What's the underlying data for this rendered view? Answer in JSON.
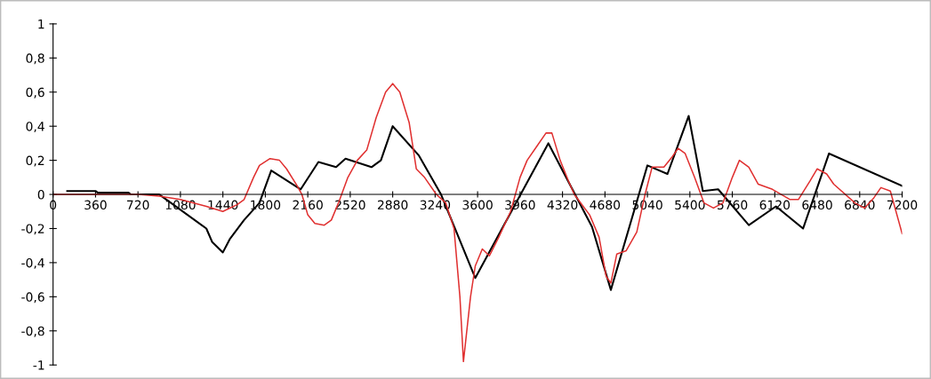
{
  "chart_data": {
    "type": "line",
    "xlim": [
      0,
      7200
    ],
    "ylim": [
      -1,
      1
    ],
    "xticks": [
      0,
      360,
      720,
      1080,
      1440,
      1800,
      2160,
      2520,
      2880,
      3240,
      3600,
      3960,
      4320,
      4680,
      5040,
      5400,
      5760,
      6120,
      6480,
      6840,
      7200
    ],
    "yticks": [
      {
        "value": -1,
        "label": "-1"
      },
      {
        "value": -0.8,
        "label": "-0,8"
      },
      {
        "value": -0.6,
        "label": "-0,6"
      },
      {
        "value": -0.4,
        "label": "-0,4"
      },
      {
        "value": -0.2,
        "label": "-0,2"
      },
      0,
      {
        "value": 0.2,
        "label": "0,2"
      },
      {
        "value": 0.4,
        "label": "0,4"
      },
      {
        "value": 0.6,
        "label": "0,6"
      },
      {
        "value": 0.8,
        "label": "0,8"
      },
      1
    ],
    "grid": false,
    "legend": false,
    "marker": "none",
    "line_style": "solid",
    "series": [
      {
        "color": "#000000",
        "x": [
          120,
          360,
          380,
          640,
          660,
          900,
          1000,
          1300,
          1350,
          1440,
          1500,
          1620,
          1750,
          1850,
          2100,
          2250,
          2400,
          2480,
          2700,
          2780,
          2880,
          3100,
          3290,
          3580,
          4200,
          4570,
          4730,
          5040,
          5210,
          5390,
          5510,
          5640,
          5900,
          6130,
          6360,
          6580,
          7200
        ],
        "values": [
          0.02,
          0.02,
          0.01,
          0.01,
          0,
          0,
          -0.05,
          -0.2,
          -0.28,
          -0.34,
          -0.26,
          -0.15,
          -0.05,
          0.14,
          0.03,
          0.19,
          0.16,
          0.21,
          0.16,
          0.2,
          0.4,
          0.23,
          0,
          -0.49,
          0.3,
          -0.19,
          -0.56,
          0.17,
          0.12,
          0.46,
          0.02,
          0.03,
          -0.18,
          -0.07,
          -0.2,
          0.24,
          0.05
        ]
      },
      {
        "color": "#e03030",
        "x": [
          0,
          720,
          900,
          1080,
          1300,
          1440,
          1560,
          1620,
          1700,
          1750,
          1840,
          1920,
          1980,
          2070,
          2110,
          2160,
          2220,
          2300,
          2360,
          2420,
          2500,
          2580,
          2660,
          2740,
          2820,
          2880,
          2940,
          3020,
          3080,
          3150,
          3250,
          3330,
          3400,
          3450,
          3480,
          3540,
          3580,
          3640,
          3700,
          3780,
          3880,
          3960,
          4020,
          4100,
          4180,
          4230,
          4300,
          4370,
          4420,
          4550,
          4630,
          4690,
          4730,
          4780,
          4860,
          4950,
          5020,
          5080,
          5180,
          5250,
          5300,
          5360,
          5440,
          5520,
          5600,
          5680,
          5760,
          5820,
          5900,
          5980,
          6100,
          6250,
          6320,
          6420,
          6480,
          6560,
          6620,
          6800,
          6880,
          6960,
          7020,
          7100,
          7200
        ],
        "values": [
          0,
          0,
          -0.01,
          -0.03,
          -0.07,
          -0.1,
          -0.06,
          -0.03,
          0.1,
          0.17,
          0.21,
          0.2,
          0.15,
          0.05,
          0,
          -0.12,
          -0.17,
          -0.18,
          -0.15,
          -0.05,
          0.1,
          0.2,
          0.26,
          0.45,
          0.6,
          0.65,
          0.6,
          0.42,
          0.15,
          0.1,
          0,
          -0.05,
          -0.2,
          -0.6,
          -0.98,
          -0.6,
          -0.42,
          -0.32,
          -0.36,
          -0.25,
          -0.1,
          0.1,
          0.2,
          0.28,
          0.36,
          0.36,
          0.2,
          0.08,
          0,
          -0.12,
          -0.25,
          -0.48,
          -0.52,
          -0.35,
          -0.33,
          -0.22,
          0,
          0.16,
          0.16,
          0.22,
          0.27,
          0.24,
          0.1,
          -0.05,
          -0.08,
          -0.05,
          0.1,
          0.2,
          0.16,
          0.06,
          0.03,
          -0.03,
          -0.03,
          0.08,
          0.15,
          0.12,
          0.06,
          -0.05,
          -0.08,
          -0.02,
          0.04,
          0.02,
          -0.23
        ]
      }
    ]
  }
}
